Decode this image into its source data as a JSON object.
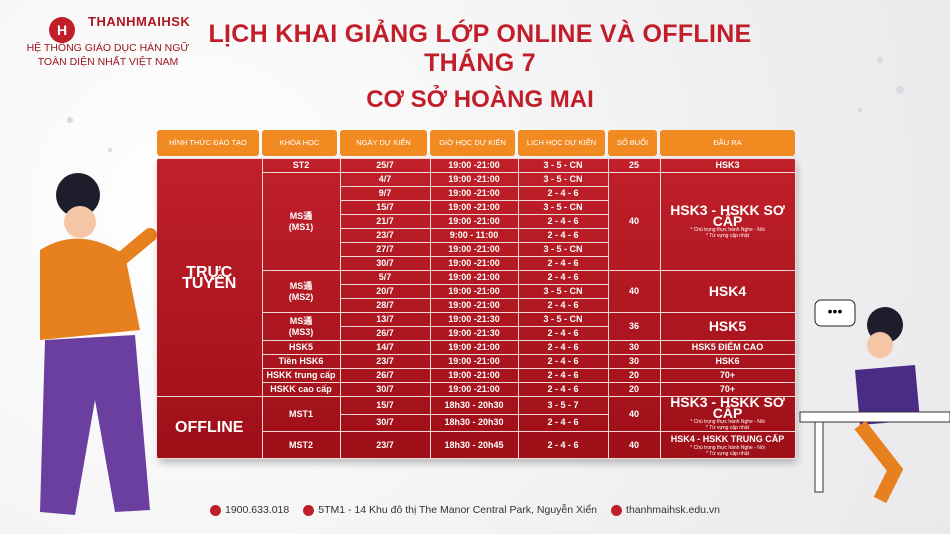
{
  "logo": {
    "brand": "THANHMAIHSK",
    "tagline_1": "HỆ THỐNG GIÁO DỤC HÁN NGỮ",
    "tagline_2": "TOÀN DIỆN NHẤT VIỆT NAM"
  },
  "header": {
    "title": "LỊCH KHAI GIẢNG LỚP ONLINE VÀ OFFLINE THÁNG 7",
    "subtitle": "CƠ SỞ HOÀNG MAI"
  },
  "table": {
    "headers": [
      "HÌNH THỨC ĐÀO TẠO",
      "KHÓA HỌC",
      "NGÀY DỰ KIẾN",
      "GIỜ HỌC DỰ KIẾN",
      "LỊCH HỌC DỰ KIẾN",
      "SỐ BUỔI",
      "ĐẦU RA"
    ],
    "groups": [
      {
        "mode": "TRỰC TUYẾN",
        "courses": [
          {
            "name": [
              "ST2"
            ],
            "count": 25,
            "output": "HSK3",
            "notes": [],
            "sessions": [
              {
                "date": "25/7",
                "time": "19:00 -21:00",
                "schedule": "3 - 5 - CN"
              }
            ]
          },
          {
            "name": [
              "MS通",
              "(MS1)"
            ],
            "count": 40,
            "output": "HSK3 - HSKK SƠ CẤP",
            "notes": [
              "* Chú trọng thực hành Nghe - Nói",
              "* Từ vựng cập nhật"
            ],
            "sessions": [
              {
                "date": "4/7",
                "time": "19:00 -21:00",
                "schedule": "3 - 5 - CN"
              },
              {
                "date": "9/7",
                "time": "19:00 -21:00",
                "schedule": "2 - 4 - 6"
              },
              {
                "date": "15/7",
                "time": "19:00 -21:00",
                "schedule": "3 - 5 - CN"
              },
              {
                "date": "21/7",
                "time": "19:00 -21:00",
                "schedule": "2 - 4 - 6"
              },
              {
                "date": "23/7",
                "time": "9:00 - 11:00",
                "schedule": "2 - 4 - 6"
              },
              {
                "date": "27/7",
                "time": "19:00 -21:00",
                "schedule": "3 - 5 - CN"
              },
              {
                "date": "30/7",
                "time": "19:00 -21:00",
                "schedule": "2 - 4 - 6"
              }
            ]
          },
          {
            "name": [
              "MS通",
              "(MS2)"
            ],
            "count": 40,
            "output": "HSK4",
            "notes": [],
            "sessions": [
              {
                "date": "5/7",
                "time": "19:00 -21:00",
                "schedule": "2 - 4 - 6"
              },
              {
                "date": "20/7",
                "time": "19:00 -21:00",
                "schedule": "3 - 5 - CN"
              },
              {
                "date": "28/7",
                "time": "19:00 -21:00",
                "schedule": "2 - 4 - 6"
              }
            ]
          },
          {
            "name": [
              "MS通",
              "(MS3)"
            ],
            "count": 36,
            "output": "HSK5",
            "notes": [],
            "sessions": [
              {
                "date": "13/7",
                "time": "19:00 -21:30",
                "schedule": "3 - 5 - CN"
              },
              {
                "date": "26/7",
                "time": "19:00 -21:30",
                "schedule": "2 - 4 - 6"
              }
            ]
          },
          {
            "name": [
              "HSK5"
            ],
            "count": 30,
            "output": "HSK5 ĐIỂM CAO",
            "notes": [],
            "sessions": [
              {
                "date": "14/7",
                "time": "19:00 -21:00",
                "schedule": "2 - 4 - 6"
              }
            ]
          },
          {
            "name": [
              "Tiền HSK6"
            ],
            "count": 30,
            "output": "HSK6",
            "notes": [],
            "sessions": [
              {
                "date": "23/7",
                "time": "19:00 -21:00",
                "schedule": "2 - 4 - 6"
              }
            ]
          },
          {
            "name": [
              "HSKK trung cấp"
            ],
            "count": 20,
            "output": "70+",
            "notes": [],
            "sessions": [
              {
                "date": "26/7",
                "time": "19:00 -21:00",
                "schedule": "2 - 4 - 6"
              }
            ]
          },
          {
            "name": [
              "HSKK cao cấp"
            ],
            "count": 20,
            "output": "70+",
            "notes": [],
            "sessions": [
              {
                "date": "30/7",
                "time": "19:00 -21:00",
                "schedule": "2 - 4 - 6"
              }
            ]
          }
        ]
      },
      {
        "mode": "OFFLINE",
        "courses": [
          {
            "name": [
              "MST1"
            ],
            "count": 40,
            "output": "HSK3 - HSKK SƠ CẤP",
            "notes": [
              "* Chú trọng thực hành Nghe - Nói",
              "* Từ vựng cập nhật"
            ],
            "sessions": [
              {
                "date": "15/7",
                "time": "18h30 - 20h30",
                "schedule": "3 - 5 - 7"
              },
              {
                "date": "30/7",
                "time": "18h30 - 20h30",
                "schedule": "2 - 4 - 6"
              }
            ]
          },
          {
            "name": [
              "MST2"
            ],
            "count": 40,
            "output": "HSK4 - HSKK TRUNG CẤP",
            "notes": [
              "* Chú trọng thực hành Nghe - Nói",
              "* Từ vựng cập nhật"
            ],
            "sessions": [
              {
                "date": "23/7",
                "time": "18h30 - 20h45",
                "schedule": "2 - 4 - 6"
              }
            ]
          }
        ]
      }
    ]
  },
  "footer": {
    "phone": "1900.633.018",
    "address": "5TM1 - 14 Khu đô thị The Manor Central Park, Nguyễn Xiển",
    "website": "thanhmaihsk.edu.vn"
  }
}
